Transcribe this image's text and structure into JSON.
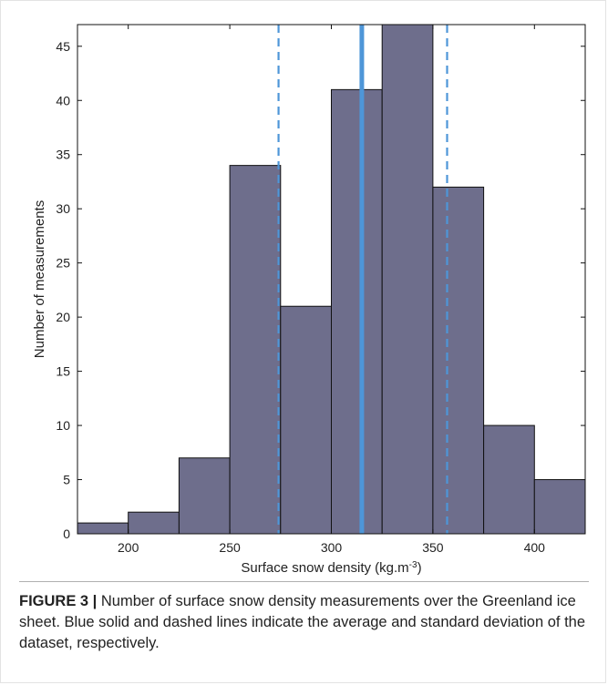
{
  "chart_data": {
    "type": "bar",
    "subtype": "histogram",
    "bin_edges": [
      175,
      200,
      225,
      250,
      275,
      300,
      325,
      350,
      375,
      400,
      425
    ],
    "values": [
      1,
      2,
      7,
      34,
      21,
      41,
      47,
      32,
      10,
      5
    ],
    "xlim": [
      175,
      425
    ],
    "ylim": [
      0,
      47
    ],
    "x_ticks": [
      200,
      250,
      300,
      350,
      400
    ],
    "y_ticks": [
      0,
      5,
      10,
      15,
      20,
      25,
      30,
      35,
      40,
      45
    ],
    "xlabel": "Surface snow density (kg.m",
    "xlabel_superscript": "-3",
    "xlabel_suffix": ")",
    "ylabel": "Number of measurements",
    "reference_lines": [
      {
        "style": "solid",
        "x": 315
      },
      {
        "style": "dashed",
        "x": 274
      },
      {
        "style": "dashed",
        "x": 357
      }
    ],
    "colors": {
      "bar_fill": "#6e6e8c",
      "bar_edge": "#111111",
      "reference_line": "#4e96d8"
    }
  },
  "caption": {
    "label": "FIGURE 3 |",
    "text": " Number of surface snow density measurements over the Greenland ice sheet. Blue solid and dashed lines indicate the average and standard deviation of the dataset, respectively."
  }
}
